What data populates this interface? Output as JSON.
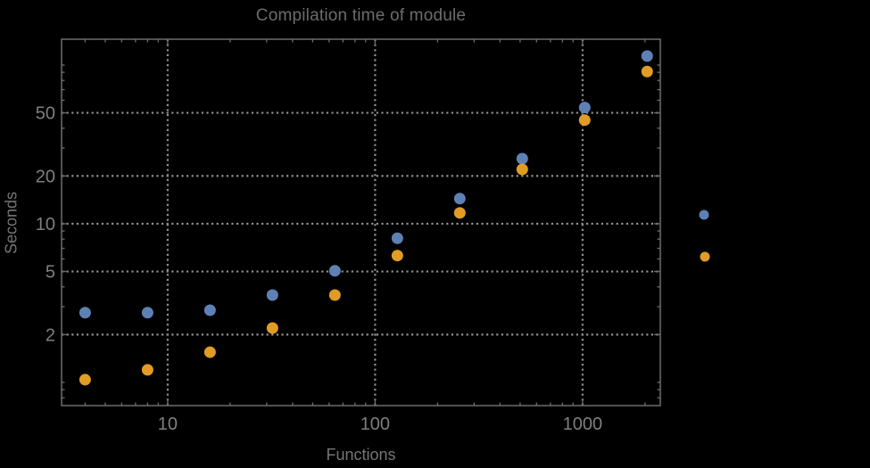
{
  "chart_data": {
    "type": "scatter",
    "title": "Compilation time of module",
    "xlabel": "Functions",
    "ylabel": "Seconds",
    "xscale": "log",
    "yscale": "log",
    "xlim": [
      3.08,
      2370
    ],
    "ylim": [
      0.714,
      145.5
    ],
    "grid": "dotted",
    "x": [
      4,
      8,
      16,
      32,
      64,
      128,
      256,
      512,
      1024,
      2048
    ],
    "series": [
      {
        "name": "series-1-blue",
        "color": "#5E81B5",
        "values": [
          2.75,
          2.75,
          2.85,
          3.55,
          5.05,
          8.1,
          14.4,
          25.7,
          54,
          114
        ]
      },
      {
        "name": "series-2-orange",
        "color": "#E09C24",
        "values": [
          1.04,
          1.2,
          1.55,
          2.2,
          3.55,
          6.3,
          11.7,
          22,
          45,
          91
        ]
      }
    ],
    "x_ticks": {
      "values": [
        10,
        100,
        1000
      ],
      "labels": [
        "10",
        "100",
        "1000"
      ]
    },
    "y_ticks": {
      "values": [
        2,
        5,
        10,
        20,
        50
      ],
      "labels": [
        "2",
        "5",
        "10",
        "20",
        "50"
      ]
    },
    "legend": {
      "position": "right-of-frame",
      "labels_visible": false,
      "markers": [
        {
          "color": "#5E81B5"
        },
        {
          "color": "#E09C24"
        }
      ]
    }
  },
  "styles": {
    "background": "#000000",
    "title_color": "#6c6c6c",
    "label_color": "#757575",
    "tick_label_color": "#7f7f7f",
    "frame_color": "#6e6e6e",
    "grid_color": "#909090"
  }
}
